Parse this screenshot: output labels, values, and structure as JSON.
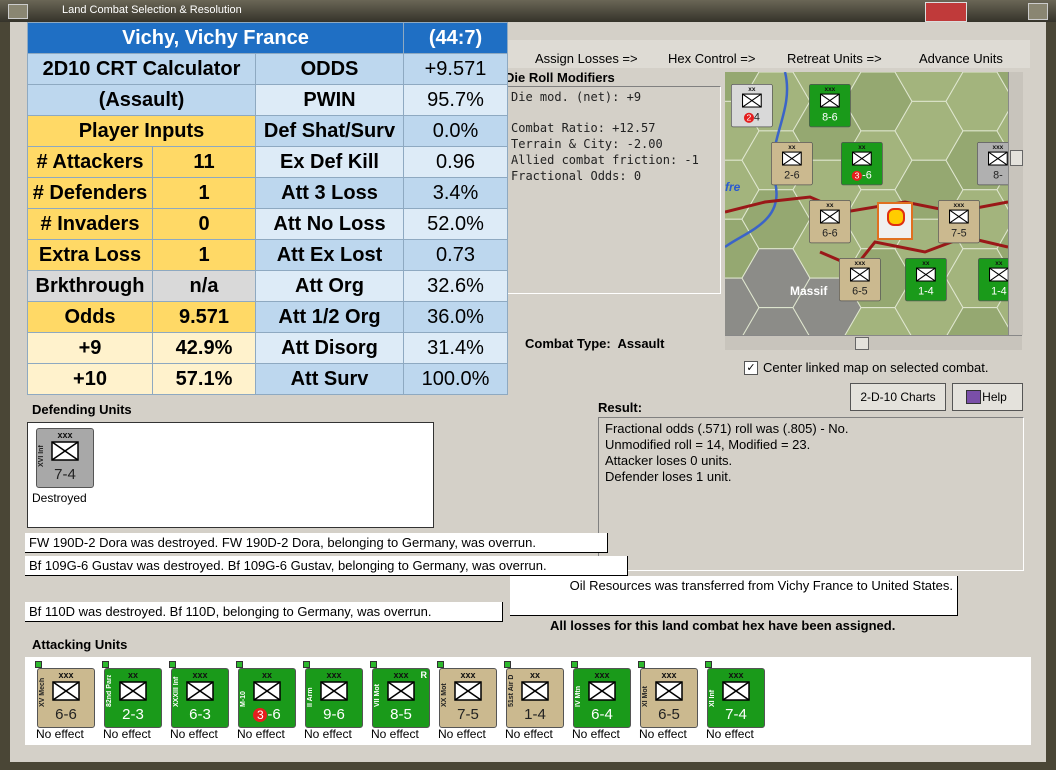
{
  "window": {
    "title": "Land Combat Selection & Resolution"
  },
  "calculator": {
    "rows": [
      [
        "Vichy, Vichy France",
        "(44:7)"
      ],
      [
        "2D10 CRT Calculator",
        "ODDS",
        "+9.571"
      ],
      [
        "(Assault)",
        "PWIN",
        "95.7%"
      ],
      [
        "Player Inputs",
        "Def Shat/Surv",
        "0.0%"
      ],
      [
        "# Attackers",
        "11",
        "Ex Def Kill",
        "0.96"
      ],
      [
        "# Defenders",
        "1",
        "Att 3 Loss",
        "3.4%"
      ],
      [
        "# Invaders",
        "0",
        "Att No Loss",
        "52.0%"
      ],
      [
        "Extra Loss",
        "1",
        "Att Ex Lost",
        "0.73"
      ],
      [
        "Brkthrough",
        "n/a",
        "Att Org",
        "32.6%"
      ],
      [
        "Odds",
        "9.571",
        "Att 1/2 Org",
        "36.0%"
      ],
      [
        "+9",
        "42.9%",
        "Att Disorg",
        "31.4%"
      ],
      [
        "+10",
        "57.1%",
        "Att Surv",
        "100.0%"
      ]
    ]
  },
  "menu": [
    "Assign Losses =>",
    "Hex Control =>",
    "Retreat Units =>",
    "Advance Units"
  ],
  "modifiers": {
    "title": "Die Roll Modifiers",
    "lines": [
      "Die mod. (net): +9",
      "Combat Ratio: +12.57",
      "Terrain & City: -2.00",
      "Allied combat friction: -1",
      "Fractional Odds: 0"
    ]
  },
  "map": {
    "labels": [
      "Massif",
      "fre"
    ],
    "units": [
      {
        "size": "xx",
        "badge": "2",
        "strength": "4",
        "color": "#d9d9d9"
      },
      {
        "size": "xxx",
        "strength": "8-6",
        "color": "#1a9a1a"
      },
      {
        "size": "xx",
        "strength": "2-6",
        "color": "#cbb98f"
      },
      {
        "size": "xx",
        "badge": "3",
        "strength": "-6",
        "color": "#1a9a1a"
      },
      {
        "size": "xxx",
        "strength": "8-",
        "color": "#b0b0b0"
      },
      {
        "size": "xx",
        "strength": "6-6",
        "color": "#cbb98f"
      },
      {
        "size": "xxx",
        "strength": "7-5",
        "color": "#cbb98f"
      },
      {
        "size": "xxx",
        "strength": "6-5",
        "color": "#cbb98f"
      },
      {
        "size": "xx",
        "strength": "1-4",
        "color": "#1a9a1a"
      },
      {
        "size": "xx",
        "strength": "1-4",
        "color": "#1a9a1a"
      }
    ]
  },
  "combat_type": {
    "label": "Combat Type:",
    "value": "Assault"
  },
  "center_map": "Center linked map on selected combat.",
  "buttons": {
    "charts": "2-D-10 Charts",
    "help": "Help"
  },
  "result": {
    "title": "Result:",
    "lines": [
      "Fractional odds (.571) roll was (.805)  - No.",
      "Unmodified roll = 14, Modified = 23.",
      "Attacker loses 0 units.",
      "Defender loses 1 unit."
    ]
  },
  "defending": {
    "title": "Defending Units",
    "units": [
      {
        "size": "xxx",
        "name": "XVI Inf",
        "strength": "7-4",
        "status": "Destroyed",
        "color": "#a8a8a8"
      }
    ]
  },
  "messages": [
    "FW 190D-2 Dora was destroyed.  FW 190D-2 Dora, belonging to Germany, was overrun.",
    "Bf 109G-6 Gustav was destroyed.  Bf 109G-6 Gustav, belonging to Germany, was overrun.",
    "Oil Resources was transferred from Vichy France to United States.",
    "Bf 110D was destroyed.  Bf 110D, belonging to Germany, was overrun."
  ],
  "all_assigned": "All losses for this land combat hex have been assigned.",
  "attacking": {
    "title": "Attacking Units",
    "units": [
      {
        "size": "xxx",
        "name": "XV Mech",
        "strength": "6-6",
        "status": "No effect",
        "color": "#cbb98f"
      },
      {
        "size": "xx",
        "name": "82nd Para D",
        "strength": "2-3",
        "status": "No effect",
        "color": "#1a9a1a"
      },
      {
        "size": "xxx",
        "name": "XXXIII Inf",
        "strength": "6-3",
        "status": "No effect",
        "color": "#1a9a1a"
      },
      {
        "size": "xx",
        "name": "M-10",
        "badge": "3",
        "strength": "-6",
        "status": "No effect",
        "color": "#1a9a1a"
      },
      {
        "size": "xxx",
        "name": "II Arm",
        "strength": "9-6",
        "status": "No effect",
        "color": "#1a9a1a"
      },
      {
        "size": "xxx",
        "name": "VII Mot",
        "flag": "R",
        "strength": "8-5",
        "status": "No effect",
        "color": "#1a9a1a"
      },
      {
        "size": "xxx",
        "name": "XX Mot",
        "strength": "7-5",
        "status": "No effect",
        "color": "#cbb98f"
      },
      {
        "size": "xx",
        "name": "51st Air Div",
        "strength": "1-4",
        "status": "No effect",
        "color": "#cbb98f"
      },
      {
        "size": "xxx",
        "name": "IV Mtn",
        "strength": "6-4",
        "status": "No effect",
        "color": "#1a9a1a"
      },
      {
        "size": "xxx",
        "name": "XI Mot",
        "strength": "6-5",
        "status": "No effect",
        "color": "#cbb98f"
      },
      {
        "size": "xxx",
        "name": "XI Inf",
        "strength": "7-4",
        "status": "No effect",
        "color": "#1a9a1a"
      }
    ]
  }
}
